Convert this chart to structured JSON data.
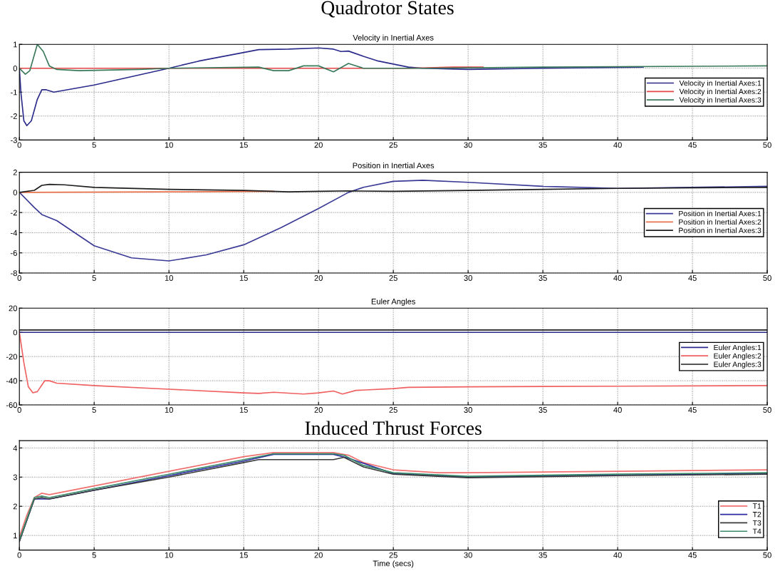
{
  "chart_data": [
    {
      "type": "line",
      "title": "Quadrotor States",
      "subtitle": "Velocity in Inertial Axes",
      "xlim": [
        0,
        50
      ],
      "xticks": [
        0,
        5,
        10,
        15,
        20,
        25,
        30,
        35,
        40,
        45,
        50
      ],
      "ylim": [
        -3,
        1
      ],
      "yticks": [
        -3,
        -2,
        -1,
        0,
        1
      ],
      "grid": true,
      "legend": "right",
      "series": [
        {
          "name": "Velocity in Inertial Axes:1",
          "color": "#2b2b8c",
          "x": [
            0,
            0.1,
            0.3,
            0.5,
            0.8,
            1.2,
            1.5,
            1.8,
            2.3,
            5,
            10,
            12,
            16,
            18,
            20,
            21,
            21.5,
            22,
            23,
            24,
            26,
            27,
            30,
            35,
            41.7
          ],
          "values": [
            0,
            -1.0,
            -2.2,
            -2.4,
            -2.2,
            -1.3,
            -0.9,
            -0.9,
            -1.0,
            -0.7,
            0,
            0.3,
            0.78,
            0.8,
            0.85,
            0.8,
            0.7,
            0.72,
            0.5,
            0.3,
            0.05,
            0,
            -0.05,
            0,
            0.05
          ]
        },
        {
          "name": "Velocity in Inertial Axes:2",
          "color": "#e8474a",
          "x": [
            0,
            10,
            20,
            26,
            29,
            31
          ],
          "values": [
            0,
            0,
            0,
            0,
            0.05,
            0.05
          ]
        },
        {
          "name": "Velocity in Inertial Axes:3",
          "color": "#3a7a5a",
          "x": [
            0,
            0.4,
            0.7,
            1.2,
            1.6,
            2,
            2.5,
            4,
            8,
            10,
            16,
            17,
            18,
            19,
            20,
            21,
            22,
            23,
            25,
            27,
            35,
            50
          ],
          "values": [
            0,
            -0.25,
            -0.1,
            1.0,
            0.7,
            0.1,
            -0.05,
            -0.1,
            -0.05,
            0,
            0.05,
            -0.1,
            -0.1,
            0.1,
            0.1,
            -0.15,
            0.2,
            0,
            0,
            0,
            0.05,
            0.1
          ]
        }
      ]
    },
    {
      "type": "line",
      "title": "Position in Inertial Axes",
      "xlim": [
        0,
        50
      ],
      "xticks": [
        0,
        5,
        10,
        15,
        20,
        25,
        30,
        35,
        40,
        45,
        50
      ],
      "ylim": [
        -8,
        2
      ],
      "yticks": [
        -8,
        -6,
        -4,
        -2,
        0,
        2
      ],
      "grid": true,
      "legend": "right",
      "series": [
        {
          "name": "Position in Inertial Axes:1",
          "color": "#3a3a96",
          "x": [
            0,
            1,
            1.5,
            2.5,
            5,
            7.5,
            10,
            12.5,
            15,
            17.5,
            20,
            22,
            23,
            25,
            27,
            30,
            35,
            40,
            50
          ],
          "values": [
            0,
            -1.5,
            -2.2,
            -2.8,
            -5.3,
            -6.5,
            -6.8,
            -6.2,
            -5.2,
            -3.5,
            -1.6,
            0,
            0.5,
            1.1,
            1.2,
            1.0,
            0.6,
            0.4,
            0.6
          ]
        },
        {
          "name": "Position in Inertial Axes:2",
          "color": "#e8704a",
          "x": [
            0,
            10,
            17
          ],
          "values": [
            0,
            0.05,
            0.1
          ]
        },
        {
          "name": "Position in Inertial Axes:3",
          "color": "#1e1e1e",
          "x": [
            0,
            1,
            1.5,
            2,
            3,
            5,
            10,
            15,
            18,
            20,
            22,
            25,
            30,
            40,
            50
          ],
          "values": [
            0,
            0.2,
            0.7,
            0.8,
            0.75,
            0.5,
            0.3,
            0.2,
            0.05,
            0.1,
            0.15,
            0.1,
            0.2,
            0.4,
            0.5
          ]
        }
      ]
    },
    {
      "type": "line",
      "title": "Euler Angles",
      "xlim": [
        0,
        50
      ],
      "xticks": [
        0,
        5,
        10,
        15,
        20,
        25,
        30,
        35,
        40,
        45,
        50
      ],
      "ylim": [
        -60,
        20
      ],
      "yticks": [
        -60,
        -40,
        -20,
        0,
        20
      ],
      "grid": true,
      "legend": "right",
      "series": [
        {
          "name": "Euler Angles:1",
          "color": "#2b2b8c",
          "x": [
            0,
            50
          ],
          "values": [
            0,
            0
          ]
        },
        {
          "name": "Euler Angles:2",
          "color": "#f06060",
          "x": [
            0,
            0.3,
            0.6,
            0.9,
            1.2,
            1.7,
            2,
            2.5,
            5,
            10,
            15,
            16,
            17,
            19,
            20,
            21,
            21.6,
            22.5,
            25,
            26,
            30,
            40,
            50
          ],
          "values": [
            0,
            -25,
            -45,
            -50,
            -49,
            -40,
            -40,
            -42,
            -44,
            -47,
            -50,
            -50.5,
            -49.5,
            -51,
            -50,
            -48.5,
            -51,
            -48,
            -46.5,
            -45.5,
            -45,
            -44.5,
            -44
          ]
        },
        {
          "name": "Euler Angles:3",
          "color": "#1e1e1e",
          "x": [
            0,
            50
          ],
          "values": [
            2,
            2
          ]
        }
      ]
    },
    {
      "type": "line",
      "title": "Induced Thrust Forces",
      "xlabel": "Time (secs)",
      "xlim": [
        0,
        50
      ],
      "xticks": [
        0,
        5,
        10,
        15,
        20,
        25,
        30,
        35,
        40,
        45,
        50
      ],
      "ylim": [
        0.5,
        4.25
      ],
      "yticks": [
        1,
        2,
        3,
        4
      ],
      "grid": true,
      "legend": "lower right",
      "series": [
        {
          "name": "T1",
          "color": "#f07070",
          "x": [
            0,
            0.5,
            1,
            1.5,
            2,
            5,
            10,
            15,
            17,
            21,
            22,
            23,
            25,
            28,
            30,
            40,
            50
          ],
          "values": [
            0.95,
            1.7,
            2.3,
            2.45,
            2.4,
            2.7,
            3.2,
            3.7,
            3.84,
            3.84,
            3.75,
            3.5,
            3.25,
            3.15,
            3.15,
            3.2,
            3.25
          ]
        },
        {
          "name": "T2",
          "color": "#2b2ba0",
          "x": [
            0,
            1,
            2,
            5,
            10,
            15,
            17,
            21,
            22,
            25,
            30,
            40,
            50
          ],
          "values": [
            0.8,
            2.25,
            2.25,
            2.55,
            3.05,
            3.55,
            3.78,
            3.78,
            3.65,
            3.12,
            3.0,
            3.08,
            3.12
          ]
        },
        {
          "name": "T3",
          "color": "#3a3a3a",
          "x": [
            0,
            1,
            1.5,
            2,
            5,
            10,
            15,
            16,
            21,
            21.7,
            23,
            25,
            30,
            40,
            50
          ],
          "values": [
            0.8,
            2.25,
            2.3,
            2.25,
            2.55,
            3.0,
            3.5,
            3.6,
            3.6,
            3.68,
            3.35,
            3.1,
            2.98,
            3.05,
            3.1
          ]
        },
        {
          "name": "T4",
          "color": "#3a8a6a",
          "x": [
            0,
            1,
            1.5,
            2,
            5,
            10,
            15,
            17,
            21,
            21.7,
            23,
            25,
            30,
            40,
            50
          ],
          "values": [
            0.85,
            2.3,
            2.35,
            2.3,
            2.6,
            3.1,
            3.6,
            3.8,
            3.8,
            3.75,
            3.4,
            3.15,
            3.03,
            3.1,
            3.15
          ]
        }
      ]
    }
  ]
}
